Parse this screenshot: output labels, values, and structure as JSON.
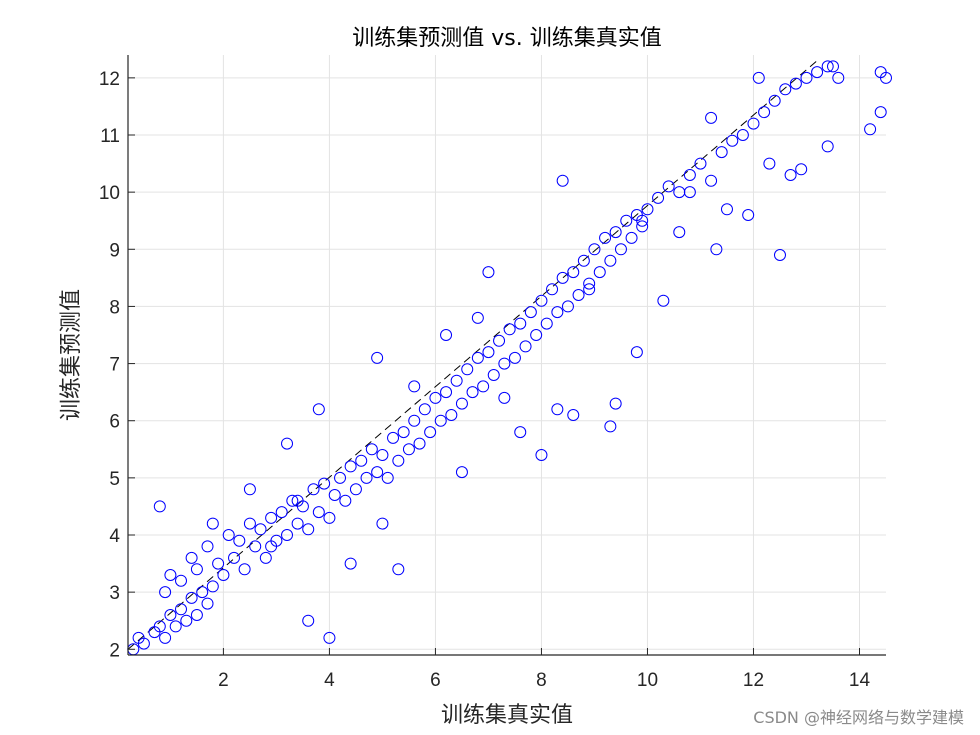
{
  "chart_data": {
    "type": "scatter",
    "title": "训练集预测值 vs. 训练集真实值",
    "xlabel": "训练集真实值",
    "ylabel": "训练集预测值",
    "xlim": [
      0.2,
      14.5
    ],
    "ylim": [
      1.9,
      12.4
    ],
    "xticks": [
      2,
      4,
      6,
      8,
      10,
      12,
      14
    ],
    "yticks": [
      2,
      3,
      4,
      5,
      6,
      7,
      8,
      9,
      10,
      11,
      12
    ],
    "grid": true,
    "marker": "open-circle",
    "reference_line": {
      "style": "dashed",
      "from": [
        0.2,
        2.0
      ],
      "to": [
        13.2,
        12.3
      ]
    },
    "colors": {
      "series": "#0000ff",
      "reference_line": "#000000",
      "grid": "#e3e3e3",
      "axis": "#262626"
    },
    "series": [
      {
        "x": [
          0.3,
          0.4,
          0.5,
          0.7,
          0.8,
          0.9,
          1.0,
          1.1,
          1.2,
          1.3,
          1.4,
          1.5,
          1.6,
          1.7,
          1.8,
          0.9,
          1.0,
          1.2,
          1.4,
          1.5,
          1.7,
          1.9,
          2.0,
          2.1,
          2.2,
          2.3,
          2.4,
          2.5,
          2.6,
          2.7,
          2.8,
          2.9,
          3.0,
          3.1,
          3.2,
          3.3,
          3.4,
          3.5,
          3.6,
          3.7,
          3.8,
          3.9,
          4.0,
          4.1,
          4.2,
          4.3,
          4.4,
          4.5,
          4.6,
          4.7,
          4.8,
          4.9,
          5.0,
          5.1,
          5.2,
          5.3,
          5.4,
          5.5,
          5.6,
          5.7,
          5.8,
          5.9,
          6.0,
          6.1,
          6.2,
          6.3,
          6.4,
          6.5,
          6.6,
          6.7,
          6.8,
          6.9,
          7.0,
          7.1,
          7.2,
          7.3,
          7.4,
          7.5,
          7.6,
          7.7,
          7.8,
          7.9,
          8.0,
          8.1,
          8.2,
          8.3,
          8.4,
          8.5,
          8.6,
          8.7,
          8.8,
          8.9,
          9.0,
          9.1,
          9.2,
          9.3,
          9.4,
          9.5,
          9.6,
          9.7,
          9.8,
          9.9,
          10.0,
          10.2,
          10.4,
          10.6,
          10.8,
          11.0,
          11.2,
          11.4,
          11.6,
          11.8,
          12.0,
          12.2,
          12.4,
          12.6,
          12.8,
          13.0,
          13.2,
          13.4,
          13.6,
          1.8,
          2.5,
          3.8,
          4.0,
          3.6,
          5.3,
          8.0,
          8.3,
          8.6,
          9.3,
          9.4,
          9.8,
          10.3,
          10.6,
          11.3,
          11.9,
          12.5,
          12.7,
          12.9,
          13.4,
          14.2,
          14.4,
          14.5,
          14.4,
          0.8,
          3.4,
          7.0,
          11.2,
          8.4,
          10.8,
          12.1,
          13.5,
          6.2,
          4.9,
          5.6,
          6.8,
          7.6,
          4.4,
          2.9,
          3.2,
          5.0,
          6.5,
          7.3,
          8.9,
          9.9,
          11.5,
          12.3
        ],
        "y": [
          2.0,
          2.2,
          2.1,
          2.3,
          2.4,
          2.2,
          2.6,
          2.4,
          2.7,
          2.5,
          2.9,
          2.6,
          3.0,
          2.8,
          3.1,
          3.0,
          3.3,
          3.2,
          3.6,
          3.4,
          3.8,
          3.5,
          3.3,
          4.0,
          3.6,
          3.9,
          3.4,
          4.2,
          3.8,
          4.1,
          3.6,
          4.3,
          3.9,
          4.4,
          4.0,
          4.6,
          4.2,
          4.5,
          4.1,
          4.8,
          4.4,
          4.9,
          4.3,
          4.7,
          5.0,
          4.6,
          5.2,
          4.8,
          5.3,
          5.0,
          5.5,
          5.1,
          5.4,
          5.0,
          5.7,
          5.3,
          5.8,
          5.5,
          6.0,
          5.6,
          6.2,
          5.8,
          6.4,
          6.0,
          6.5,
          6.1,
          6.7,
          6.3,
          6.9,
          6.5,
          7.1,
          6.6,
          7.2,
          6.8,
          7.4,
          7.0,
          7.6,
          7.1,
          7.7,
          7.3,
          7.9,
          7.5,
          8.1,
          7.7,
          8.3,
          7.9,
          8.5,
          8.0,
          8.6,
          8.2,
          8.8,
          8.4,
          9.0,
          8.6,
          9.2,
          8.8,
          9.3,
          9.0,
          9.5,
          9.2,
          9.6,
          9.4,
          9.7,
          9.9,
          10.1,
          10.0,
          10.3,
          10.5,
          10.2,
          10.7,
          10.9,
          11.0,
          11.2,
          11.4,
          11.6,
          11.8,
          11.9,
          12.0,
          12.1,
          12.2,
          12.0,
          4.2,
          4.8,
          6.2,
          2.2,
          2.5,
          3.4,
          5.4,
          6.2,
          6.1,
          5.9,
          6.3,
          7.2,
          8.1,
          9.3,
          9.0,
          9.6,
          8.9,
          10.3,
          10.4,
          10.8,
          11.1,
          11.4,
          12.0,
          12.1,
          4.5,
          4.6,
          8.6,
          11.3,
          10.2,
          10.0,
          12.0,
          12.2,
          7.5,
          7.1,
          6.6,
          7.8,
          5.8,
          3.5,
          3.8,
          5.6,
          4.2,
          5.1,
          6.4,
          8.3,
          9.5,
          9.7,
          10.5
        ]
      }
    ]
  },
  "watermark": "CSDN @神经网络与数学建模"
}
